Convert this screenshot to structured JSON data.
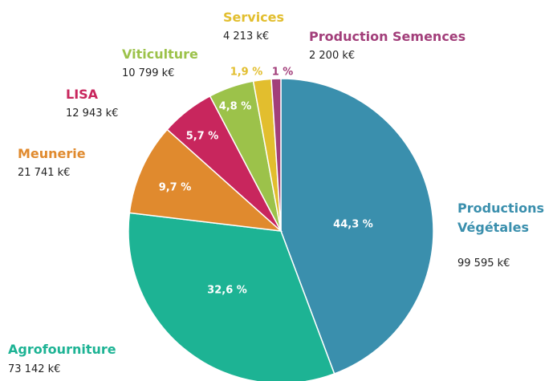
{
  "chart_data": {
    "type": "pie",
    "categories": [
      "Productions Végétales",
      "Agrofourniture",
      "Meunerie",
      "LISA",
      "Viticulture",
      "Services",
      "Production Semences"
    ],
    "values": [
      44.3,
      32.6,
      9.7,
      5.7,
      4.8,
      1.9,
      1
    ],
    "value_labels": [
      "44,3 %",
      "32,6 %",
      "9,7 %",
      "5,7 %",
      "4,8 %",
      "1,9 %",
      "1 %"
    ],
    "amount_labels": [
      "99 595 k€",
      "73 142 k€",
      "21 741 k€",
      "12 943 k€",
      "10 799 k€",
      "4 213 k€",
      "2 200 k€"
    ],
    "colors": [
      "#3a8fad",
      "#1db394",
      "#e08a2e",
      "#c8265d",
      "#9cc24a",
      "#e2be2e",
      "#a23e7a"
    ]
  }
}
